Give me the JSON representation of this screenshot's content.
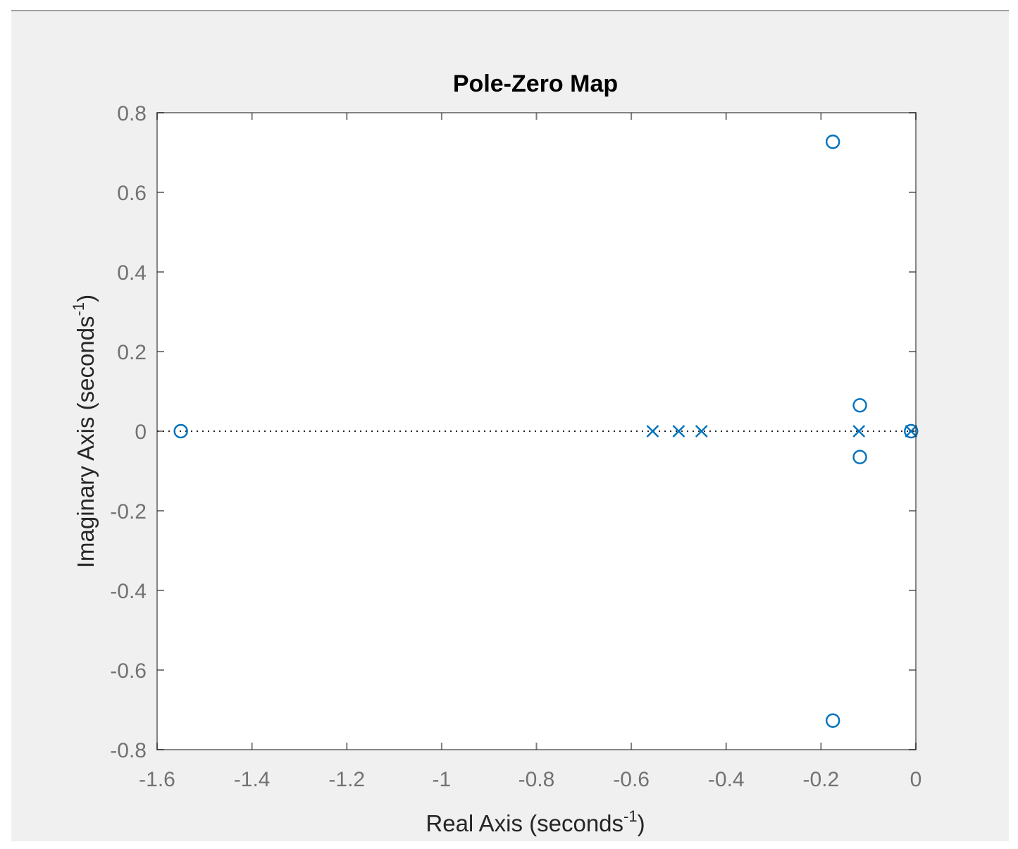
{
  "chart_data": {
    "type": "scatter",
    "title": "Pole-Zero Map",
    "xlabel": {
      "text": "Real Axis (seconds",
      "sup": "-1",
      "close": ")"
    },
    "ylabel": {
      "text": "Imaginary Axis (seconds",
      "sup": "-1",
      "close": ")"
    },
    "xlim": [
      -1.6,
      0
    ],
    "ylim": [
      -0.8,
      0.8
    ],
    "xticks": [
      -1.6,
      -1.4,
      -1.2,
      -1.0,
      -0.8,
      -0.6,
      -0.4,
      -0.2,
      0
    ],
    "xtick_labels": [
      "-1.6",
      "-1.4",
      "-1.2",
      "-1",
      "-0.8",
      "-0.6",
      "-0.4",
      "-0.2",
      "0"
    ],
    "yticks": [
      -0.8,
      -0.6,
      -0.4,
      -0.2,
      0,
      0.2,
      0.4,
      0.6,
      0.8
    ],
    "ytick_labels": [
      "-0.8",
      "-0.6",
      "-0.4",
      "-0.2",
      "0",
      "0.2",
      "0.4",
      "0.6",
      "0.8"
    ],
    "grid": false,
    "marker_color": "#0072bd",
    "series": [
      {
        "marker": "x",
        "points": [
          {
            "x": -0.555,
            "y": 0
          },
          {
            "x": -0.5,
            "y": 0
          },
          {
            "x": -0.452,
            "y": 0
          },
          {
            "x": -0.12,
            "y": 0
          },
          {
            "x": -0.01,
            "y": 0
          }
        ]
      },
      {
        "marker": "o",
        "points": [
          {
            "x": -1.55,
            "y": 0
          },
          {
            "x": -0.175,
            "y": 0.727
          },
          {
            "x": -0.175,
            "y": -0.727
          },
          {
            "x": -0.118,
            "y": 0.065
          },
          {
            "x": -0.118,
            "y": -0.065
          },
          {
            "x": -0.01,
            "y": 0
          }
        ]
      }
    ]
  }
}
